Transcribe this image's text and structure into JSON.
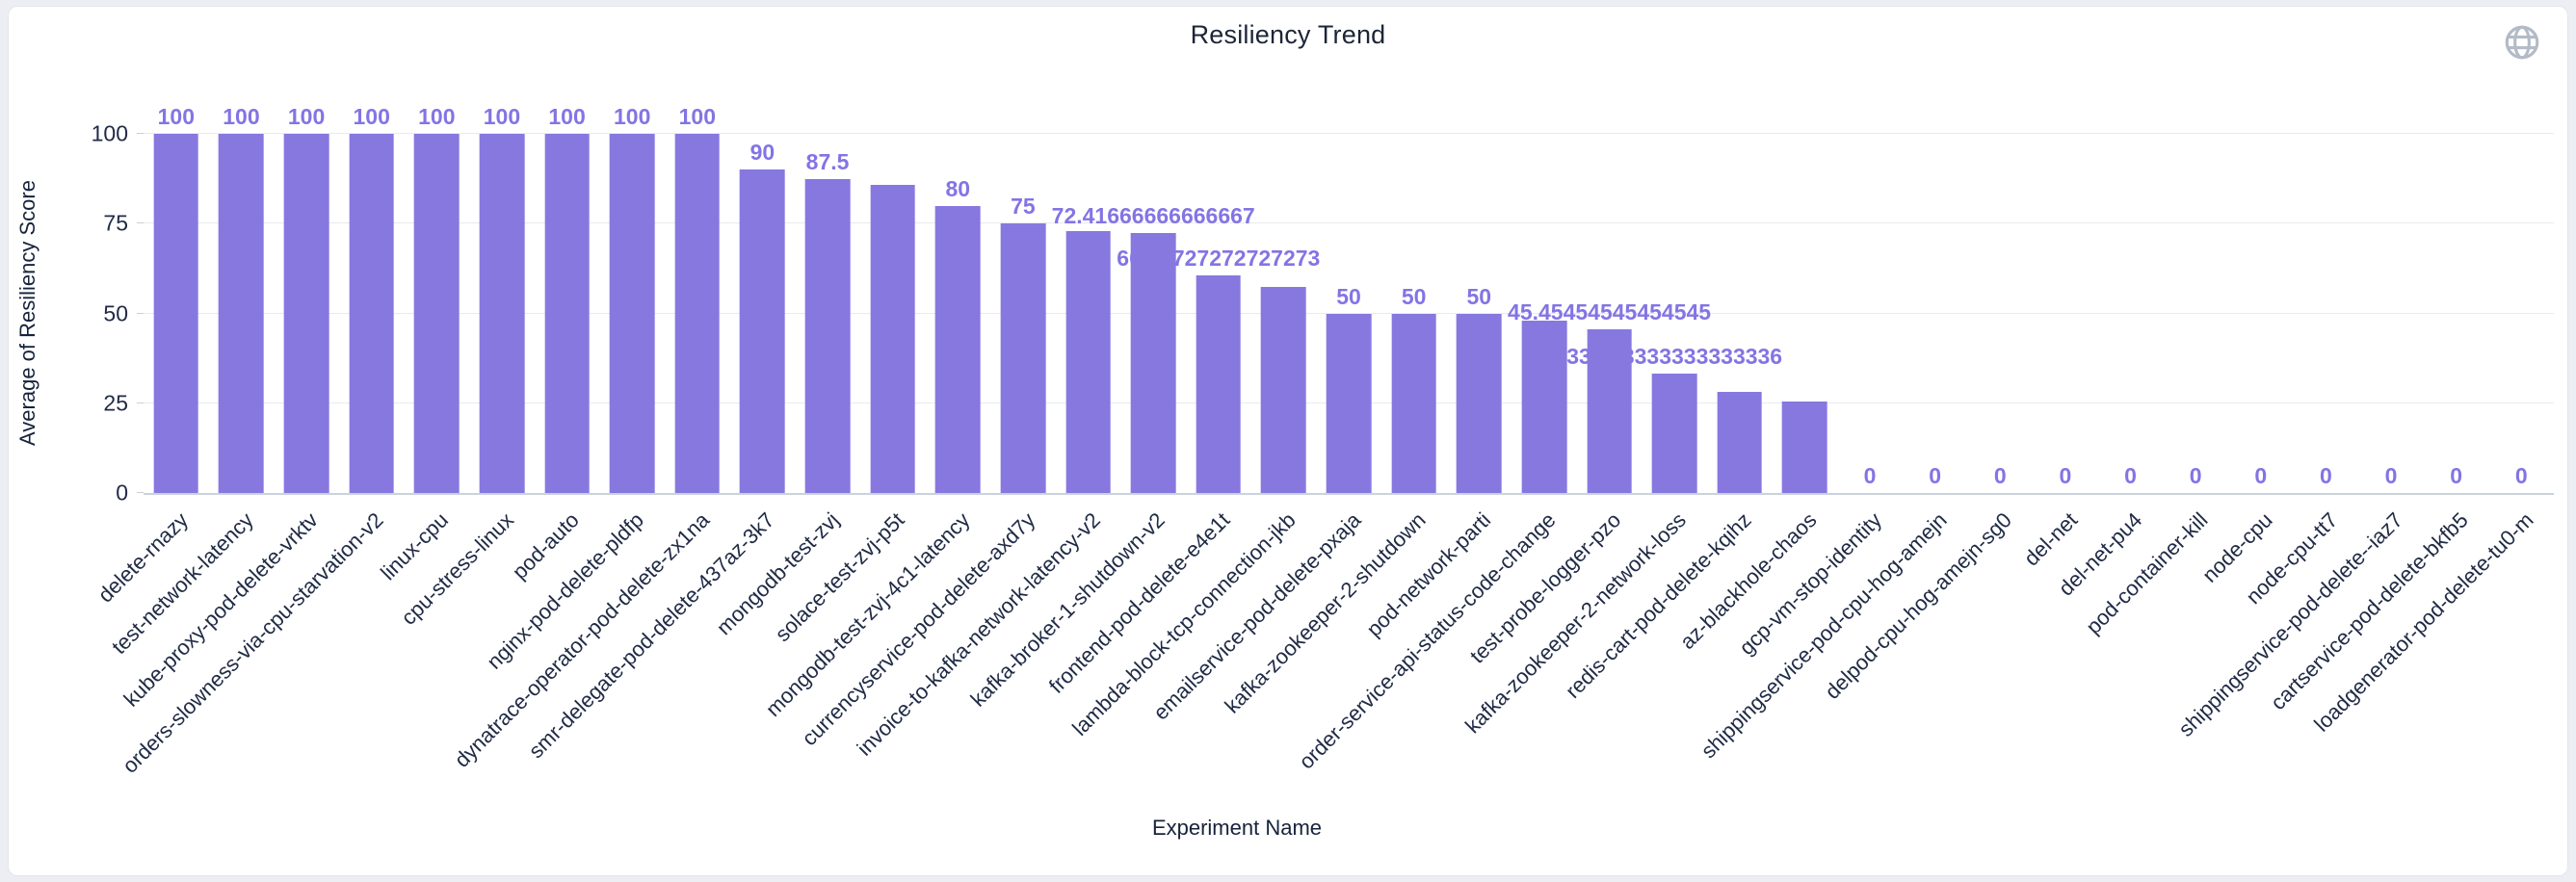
{
  "header": {
    "title": "Resiliency Trend",
    "globe_icon": "globe-icon",
    "globe_color": "#b4bbc7"
  },
  "colors": {
    "bar": "#8778e0",
    "value_label": "#8374e4",
    "axis_text": "#202b46",
    "gridline": "#e8eaef",
    "axis_line": "#ccd2dc",
    "card_background": "#ffffff",
    "page_background": "#eceef3"
  },
  "chart_data": {
    "type": "bar",
    "title": "Resiliency Trend",
    "xlabel": "Experiment Name",
    "ylabel": "Average of Resiliency Score",
    "ylim": [
      0,
      100
    ],
    "yticks": [
      0,
      25,
      50,
      75,
      100
    ],
    "grid": true,
    "legend": false,
    "categories": [
      "delete-rnazy",
      "test-network-latency",
      "kube-proxy-pod-delete-vrktv",
      "orders-slowness-via-cpu-starvation-v2",
      "linux-cpu",
      "cpu-stress-linux",
      "pod-auto",
      "nginx-pod-delete-pldfp",
      "dynatrace-operator-pod-delete-zx1na",
      "smr-delegate-pod-delete-437az-3k7",
      "mongodb-test-zvj",
      "solace-test-zvj-p5t",
      "mongodb-test-zvj-4c1-latency",
      "currencyservice-pod-delete-axd7y",
      "invoice-to-kafka-network-latency-v2",
      "kafka-broker-1-shutdown-v2",
      "frontend-pod-delete-e4e1t",
      "lambda-block-tcp-connection-jkb",
      "emailservice-pod-delete-pxaja",
      "kafka-zookeeper-2-shutdown",
      "pod-network-parti",
      "order-service-api-status-code-change",
      "test-probe-logger-pzo",
      "kafka-zookeeper-2-network-loss",
      "redis-cart-pod-delete-kqihz",
      "az-blackhole-chaos",
      "gcp-vm-stop-identity",
      "shippingservice-pod-cpu-hog-amejn",
      "delpod-cpu-hog-amejn-sg0",
      "del-net",
      "del-net-pu4",
      "pod-container-kill",
      "node-cpu",
      "node-cpu-tt7",
      "shippingservice-pod-delete--iaz7",
      "cartservice-pod-delete-bkfb5",
      "loadgenerator-pod-delete-tu0-m"
    ],
    "values": [
      100,
      100,
      100,
      100,
      100,
      100,
      100,
      100,
      100,
      90,
      87.5,
      85.8,
      80,
      75,
      73,
      72.41666666666667,
      60.72727272727273,
      57.4,
      50,
      50,
      50,
      48,
      45.45454545454545,
      33.333333333333336,
      28.2,
      25.5,
      0,
      0,
      0,
      0,
      0,
      0,
      0,
      0,
      0,
      0,
      0
    ],
    "value_labels": [
      "100",
      "100",
      "100",
      "100",
      "100",
      "100",
      "100",
      "100",
      "100",
      "90",
      "87.5",
      "",
      "80",
      "75",
      "",
      "72.41666666666667",
      "60.72727272727273",
      "",
      "50",
      "50",
      "50",
      "",
      "45.45454545454545",
      "33.333333333333336",
      "",
      "",
      "0",
      "0",
      "0",
      "0",
      "0",
      "0",
      "0",
      "0",
      "0",
      "0",
      "0"
    ]
  }
}
